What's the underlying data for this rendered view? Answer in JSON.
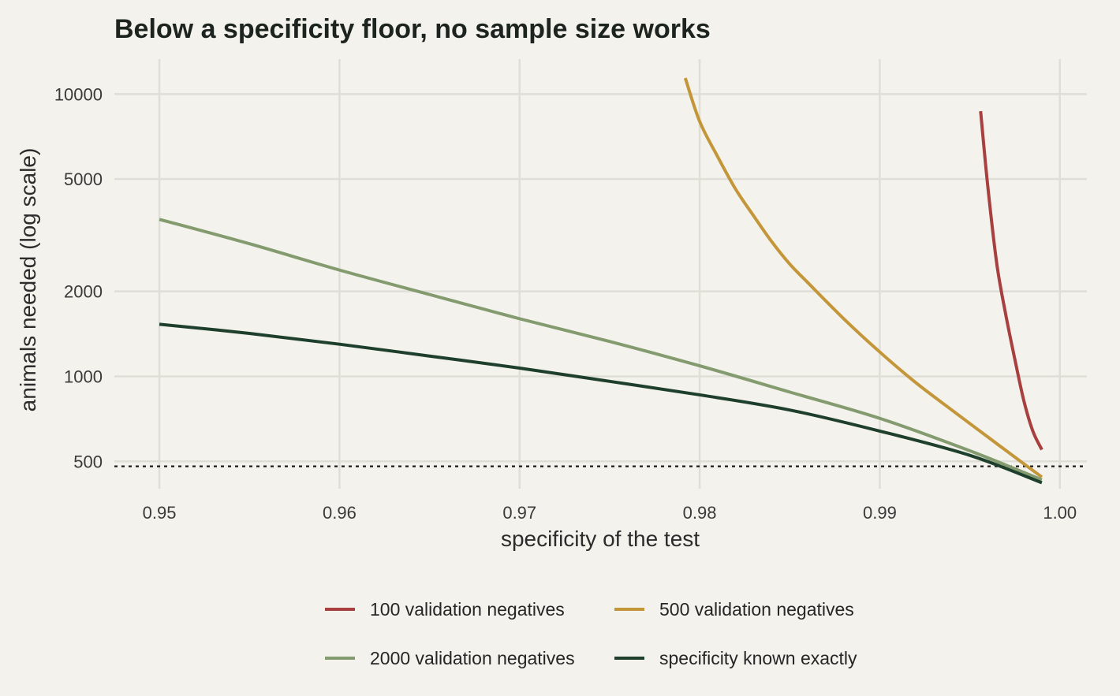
{
  "chart_data": {
    "type": "line",
    "title": "Below a specificity floor, no sample size works",
    "xlabel": "specificity of the test",
    "ylabel": "animals needed (log scale)",
    "xlim": [
      0.9475,
      1.0015
    ],
    "ylim": [
      400,
      13300
    ],
    "y_scale": "log",
    "x_ticks": [
      {
        "value": 0.95,
        "label": "0.95"
      },
      {
        "value": 0.96,
        "label": "0.96"
      },
      {
        "value": 0.97,
        "label": "0.97"
      },
      {
        "value": 0.98,
        "label": "0.98"
      },
      {
        "value": 0.99,
        "label": "0.99"
      },
      {
        "value": 1.0,
        "label": "1.00"
      }
    ],
    "y_ticks": [
      {
        "value": 500,
        "label": "500"
      },
      {
        "value": 1000,
        "label": "1000"
      },
      {
        "value": 2000,
        "label": "2000"
      },
      {
        "value": 5000,
        "label": "5000"
      },
      {
        "value": 10000,
        "label": "10000"
      }
    ],
    "grid": true,
    "legend_position": "bottom",
    "reference_line": {
      "y": 480,
      "style": "dotted",
      "color": "#1a1a1a"
    },
    "series": [
      {
        "name": "100 validation negatives",
        "color": "#a8403f",
        "x": [
          0.9956,
          0.996,
          0.9965,
          0.997,
          0.9975,
          0.998,
          0.9985,
          0.999
        ],
        "y": [
          8700,
          4700,
          2500,
          1650,
          1150,
          820,
          640,
          550
        ]
      },
      {
        "name": "500 validation negatives",
        "color": "#c4963a",
        "x": [
          0.9792,
          0.98,
          0.981,
          0.982,
          0.983,
          0.984,
          0.985,
          0.986,
          0.988,
          0.99,
          0.992,
          0.994,
          0.996,
          0.998,
          0.999
        ],
        "y": [
          11400,
          8000,
          6000,
          4600,
          3700,
          3000,
          2500,
          2150,
          1600,
          1220,
          950,
          760,
          610,
          490,
          440
        ]
      },
      {
        "name": "2000 validation negatives",
        "color": "#839b6e",
        "x": [
          0.95,
          0.955,
          0.96,
          0.965,
          0.97,
          0.975,
          0.98,
          0.985,
          0.99,
          0.995,
          0.999
        ],
        "y": [
          3600,
          2950,
          2380,
          1950,
          1600,
          1330,
          1090,
          880,
          710,
          545,
          430
        ]
      },
      {
        "name": "specificity known exactly",
        "color": "#1f3f2d",
        "x": [
          0.95,
          0.955,
          0.96,
          0.965,
          0.97,
          0.975,
          0.98,
          0.985,
          0.99,
          0.995,
          0.999
        ],
        "y": [
          1530,
          1420,
          1300,
          1180,
          1070,
          960,
          860,
          760,
          640,
          525,
          420
        ]
      }
    ]
  }
}
